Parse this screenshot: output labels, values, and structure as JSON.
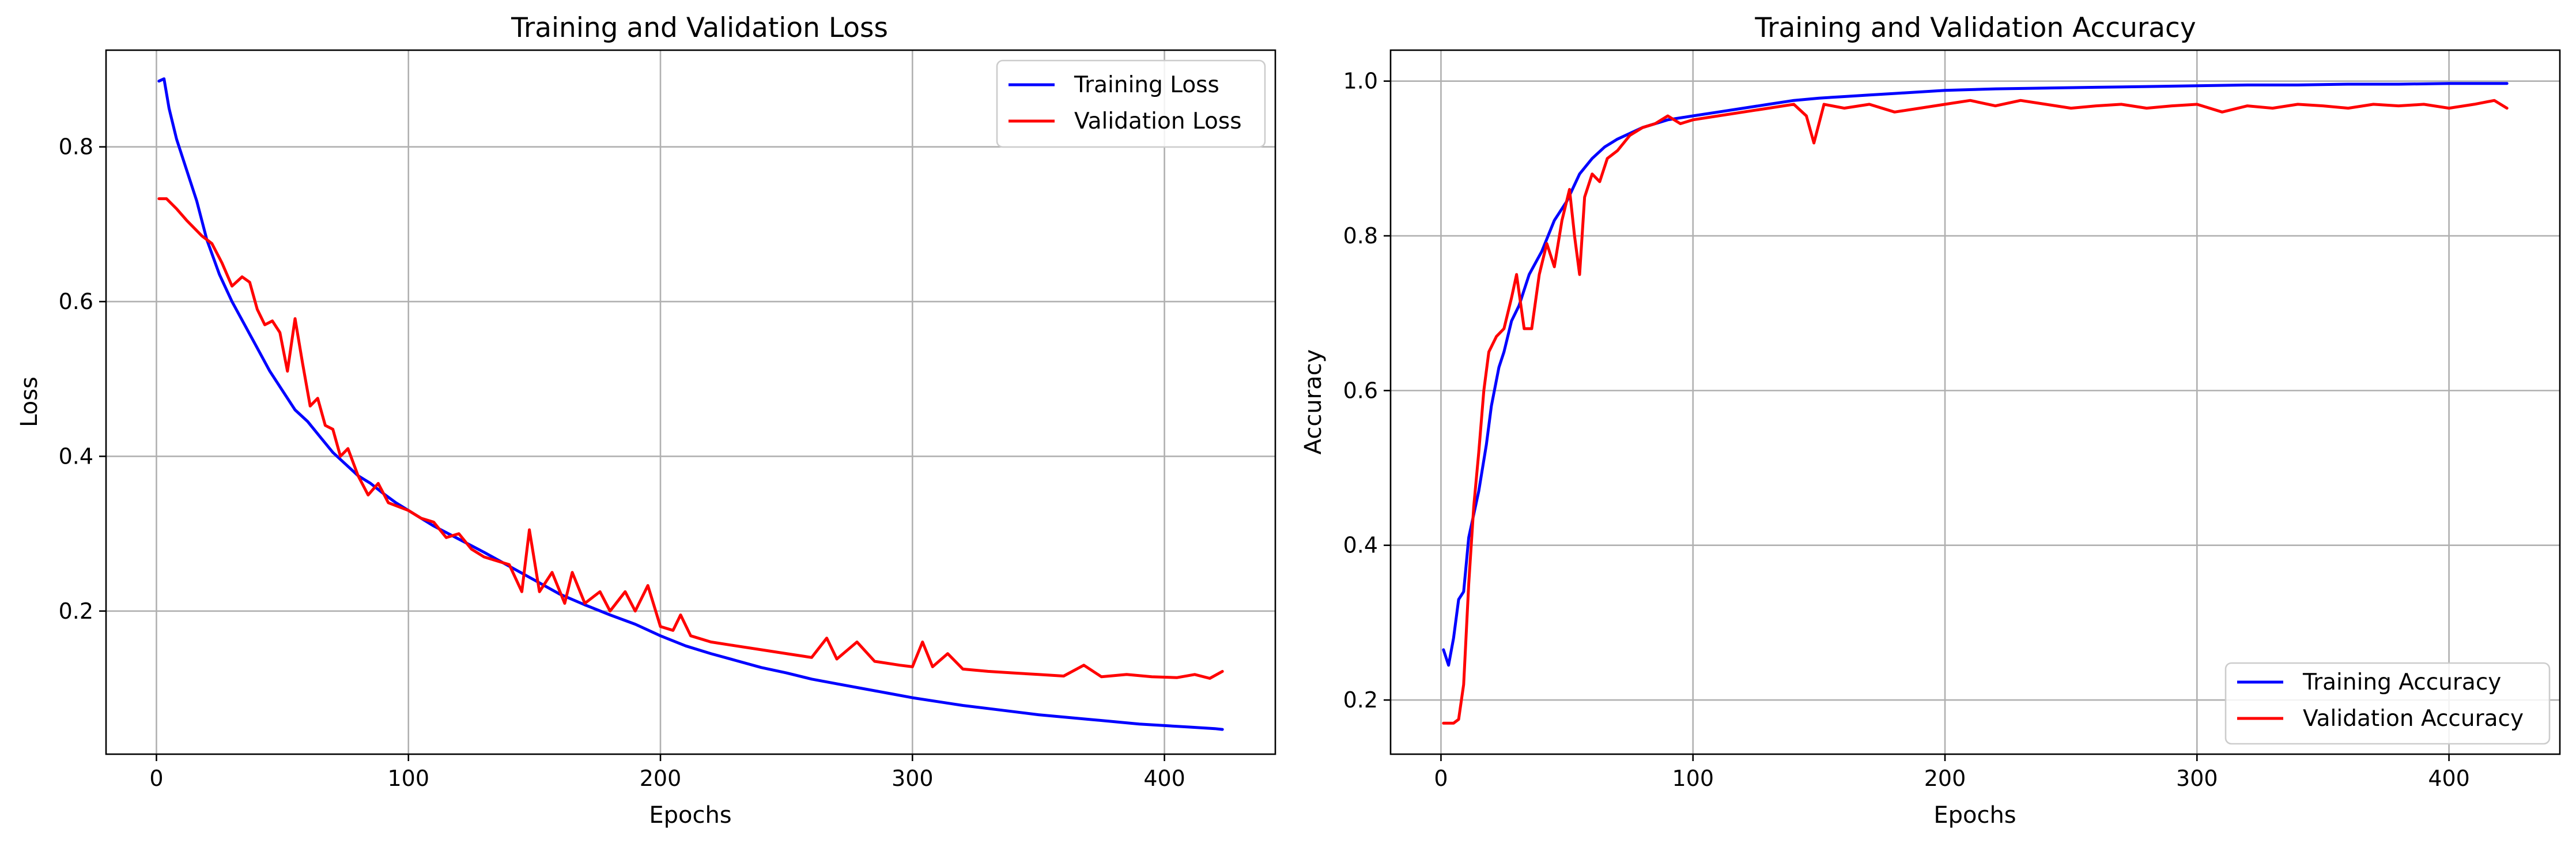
{
  "chart_data": [
    {
      "type": "line",
      "title": "Training and Validation Loss",
      "xlabel": "Epochs",
      "ylabel": "Loss",
      "xlim": [
        -20,
        444
      ],
      "ylim": [
        0.015,
        0.925
      ],
      "xticks": [
        0,
        100,
        200,
        300,
        400
      ],
      "yticks": [
        0.2,
        0.4,
        0.6,
        0.8
      ],
      "xtick_labels": [
        "0",
        "100",
        "200",
        "300",
        "400"
      ],
      "ytick_labels": [
        "0.2",
        "0.4",
        "0.6",
        "0.8"
      ],
      "grid": true,
      "legend": "top-right",
      "series": [
        {
          "name": "Training Loss",
          "color": "#0000ff",
          "points": [
            [
              1,
              0.885
            ],
            [
              3,
              0.888
            ],
            [
              5,
              0.85
            ],
            [
              8,
              0.81
            ],
            [
              12,
              0.77
            ],
            [
              16,
              0.73
            ],
            [
              20,
              0.68
            ],
            [
              25,
              0.635
            ],
            [
              30,
              0.6
            ],
            [
              35,
              0.57
            ],
            [
              40,
              0.54
            ],
            [
              45,
              0.51
            ],
            [
              50,
              0.485
            ],
            [
              55,
              0.46
            ],
            [
              60,
              0.445
            ],
            [
              65,
              0.425
            ],
            [
              70,
              0.405
            ],
            [
              75,
              0.39
            ],
            [
              80,
              0.375
            ],
            [
              85,
              0.365
            ],
            [
              90,
              0.352
            ],
            [
              95,
              0.34
            ],
            [
              100,
              0.33
            ],
            [
              110,
              0.31
            ],
            [
              120,
              0.293
            ],
            [
              130,
              0.276
            ],
            [
              140,
              0.258
            ],
            [
              150,
              0.24
            ],
            [
              160,
              0.222
            ],
            [
              170,
              0.208
            ],
            [
              180,
              0.195
            ],
            [
              190,
              0.183
            ],
            [
              200,
              0.168
            ],
            [
              210,
              0.155
            ],
            [
              220,
              0.145
            ],
            [
              230,
              0.136
            ],
            [
              240,
              0.127
            ],
            [
              250,
              0.12
            ],
            [
              260,
              0.112
            ],
            [
              270,
              0.106
            ],
            [
              280,
              0.1
            ],
            [
              290,
              0.094
            ],
            [
              300,
              0.088
            ],
            [
              310,
              0.083
            ],
            [
              320,
              0.078
            ],
            [
              330,
              0.074
            ],
            [
              340,
              0.07
            ],
            [
              350,
              0.066
            ],
            [
              360,
              0.063
            ],
            [
              370,
              0.06
            ],
            [
              380,
              0.057
            ],
            [
              390,
              0.054
            ],
            [
              400,
              0.052
            ],
            [
              410,
              0.05
            ],
            [
              420,
              0.048
            ],
            [
              423,
              0.047
            ]
          ]
        },
        {
          "name": "Validation Loss",
          "color": "#ff0000",
          "points": [
            [
              1,
              0.733
            ],
            [
              4,
              0.733
            ],
            [
              8,
              0.72
            ],
            [
              12,
              0.705
            ],
            [
              18,
              0.685
            ],
            [
              22,
              0.675
            ],
            [
              26,
              0.65
            ],
            [
              30,
              0.62
            ],
            [
              34,
              0.632
            ],
            [
              37,
              0.625
            ],
            [
              40,
              0.59
            ],
            [
              43,
              0.57
            ],
            [
              46,
              0.575
            ],
            [
              49,
              0.56
            ],
            [
              52,
              0.51
            ],
            [
              55,
              0.578
            ],
            [
              58,
              0.52
            ],
            [
              61,
              0.465
            ],
            [
              64,
              0.475
            ],
            [
              67,
              0.44
            ],
            [
              70,
              0.435
            ],
            [
              73,
              0.4
            ],
            [
              76,
              0.41
            ],
            [
              80,
              0.375
            ],
            [
              84,
              0.35
            ],
            [
              88,
              0.365
            ],
            [
              92,
              0.34
            ],
            [
              100,
              0.33
            ],
            [
              105,
              0.32
            ],
            [
              110,
              0.315
            ],
            [
              115,
              0.295
            ],
            [
              120,
              0.3
            ],
            [
              125,
              0.28
            ],
            [
              130,
              0.27
            ],
            [
              135,
              0.265
            ],
            [
              140,
              0.26
            ],
            [
              145,
              0.225
            ],
            [
              148,
              0.305
            ],
            [
              152,
              0.225
            ],
            [
              157,
              0.25
            ],
            [
              162,
              0.21
            ],
            [
              165,
              0.25
            ],
            [
              170,
              0.21
            ],
            [
              176,
              0.225
            ],
            [
              180,
              0.2
            ],
            [
              186,
              0.225
            ],
            [
              190,
              0.2
            ],
            [
              195,
              0.233
            ],
            [
              200,
              0.18
            ],
            [
              205,
              0.175
            ],
            [
              208,
              0.195
            ],
            [
              212,
              0.168
            ],
            [
              220,
              0.16
            ],
            [
              230,
              0.155
            ],
            [
              240,
              0.15
            ],
            [
              250,
              0.145
            ],
            [
              260,
              0.14
            ],
            [
              266,
              0.165
            ],
            [
              270,
              0.138
            ],
            [
              278,
              0.16
            ],
            [
              285,
              0.135
            ],
            [
              295,
              0.13
            ],
            [
              300,
              0.128
            ],
            [
              304,
              0.16
            ],
            [
              308,
              0.128
            ],
            [
              314,
              0.145
            ],
            [
              320,
              0.125
            ],
            [
              330,
              0.122
            ],
            [
              340,
              0.12
            ],
            [
              350,
              0.118
            ],
            [
              360,
              0.116
            ],
            [
              368,
              0.13
            ],
            [
              375,
              0.115
            ],
            [
              385,
              0.118
            ],
            [
              395,
              0.115
            ],
            [
              405,
              0.114
            ],
            [
              412,
              0.118
            ],
            [
              418,
              0.113
            ],
            [
              423,
              0.122
            ]
          ]
        }
      ]
    },
    {
      "type": "line",
      "title": "Training and Validation Accuracy",
      "xlabel": "Epochs",
      "ylabel": "Accuracy",
      "xlim": [
        -20,
        444
      ],
      "ylim": [
        0.13,
        1.04
      ],
      "xticks": [
        0,
        100,
        200,
        300,
        400
      ],
      "yticks": [
        0.2,
        0.4,
        0.6,
        0.8,
        1.0
      ],
      "xtick_labels": [
        "0",
        "100",
        "200",
        "300",
        "400"
      ],
      "ytick_labels": [
        "0.2",
        "0.4",
        "0.6",
        "0.8",
        "1.0"
      ],
      "grid": true,
      "legend": "bottom-right",
      "series": [
        {
          "name": "Training Accuracy",
          "color": "#0000ff",
          "points": [
            [
              1,
              0.265
            ],
            [
              3,
              0.245
            ],
            [
              5,
              0.28
            ],
            [
              7,
              0.33
            ],
            [
              9,
              0.34
            ],
            [
              11,
              0.41
            ],
            [
              13,
              0.44
            ],
            [
              15,
              0.47
            ],
            [
              18,
              0.53
            ],
            [
              20,
              0.58
            ],
            [
              23,
              0.63
            ],
            [
              25,
              0.65
            ],
            [
              28,
              0.69
            ],
            [
              31,
              0.71
            ],
            [
              35,
              0.75
            ],
            [
              40,
              0.78
            ],
            [
              45,
              0.82
            ],
            [
              50,
              0.845
            ],
            [
              55,
              0.88
            ],
            [
              60,
              0.9
            ],
            [
              65,
              0.915
            ],
            [
              70,
              0.925
            ],
            [
              80,
              0.94
            ],
            [
              90,
              0.95
            ],
            [
              100,
              0.955
            ],
            [
              110,
              0.96
            ],
            [
              120,
              0.965
            ],
            [
              130,
              0.97
            ],
            [
              140,
              0.975
            ],
            [
              150,
              0.978
            ],
            [
              160,
              0.98
            ],
            [
              170,
              0.982
            ],
            [
              180,
              0.984
            ],
            [
              200,
              0.988
            ],
            [
              220,
              0.99
            ],
            [
              240,
              0.991
            ],
            [
              260,
              0.992
            ],
            [
              280,
              0.993
            ],
            [
              300,
              0.994
            ],
            [
              320,
              0.995
            ],
            [
              340,
              0.995
            ],
            [
              360,
              0.996
            ],
            [
              380,
              0.996
            ],
            [
              400,
              0.997
            ],
            [
              423,
              0.997
            ]
          ]
        },
        {
          "name": "Validation Accuracy",
          "color": "#ff0000",
          "points": [
            [
              1,
              0.17
            ],
            [
              5,
              0.17
            ],
            [
              7,
              0.175
            ],
            [
              9,
              0.22
            ],
            [
              11,
              0.35
            ],
            [
              13,
              0.45
            ],
            [
              15,
              0.52
            ],
            [
              17,
              0.6
            ],
            [
              19,
              0.65
            ],
            [
              22,
              0.67
            ],
            [
              25,
              0.68
            ],
            [
              28,
              0.72
            ],
            [
              30,
              0.75
            ],
            [
              33,
              0.68
            ],
            [
              36,
              0.68
            ],
            [
              39,
              0.75
            ],
            [
              42,
              0.79
            ],
            [
              45,
              0.76
            ],
            [
              48,
              0.82
            ],
            [
              51,
              0.86
            ],
            [
              53,
              0.8
            ],
            [
              55,
              0.75
            ],
            [
              57,
              0.85
            ],
            [
              60,
              0.88
            ],
            [
              63,
              0.87
            ],
            [
              66,
              0.9
            ],
            [
              70,
              0.91
            ],
            [
              75,
              0.93
            ],
            [
              80,
              0.94
            ],
            [
              85,
              0.945
            ],
            [
              90,
              0.955
            ],
            [
              95,
              0.945
            ],
            [
              100,
              0.95
            ],
            [
              110,
              0.955
            ],
            [
              120,
              0.96
            ],
            [
              130,
              0.965
            ],
            [
              140,
              0.97
            ],
            [
              145,
              0.955
            ],
            [
              148,
              0.92
            ],
            [
              152,
              0.97
            ],
            [
              160,
              0.965
            ],
            [
              170,
              0.97
            ],
            [
              180,
              0.96
            ],
            [
              190,
              0.965
            ],
            [
              200,
              0.97
            ],
            [
              210,
              0.975
            ],
            [
              220,
              0.968
            ],
            [
              230,
              0.975
            ],
            [
              240,
              0.97
            ],
            [
              250,
              0.965
            ],
            [
              260,
              0.968
            ],
            [
              270,
              0.97
            ],
            [
              280,
              0.965
            ],
            [
              290,
              0.968
            ],
            [
              300,
              0.97
            ],
            [
              310,
              0.96
            ],
            [
              320,
              0.968
            ],
            [
              330,
              0.965
            ],
            [
              340,
              0.97
            ],
            [
              350,
              0.968
            ],
            [
              360,
              0.965
            ],
            [
              370,
              0.97
            ],
            [
              380,
              0.968
            ],
            [
              390,
              0.97
            ],
            [
              400,
              0.965
            ],
            [
              410,
              0.97
            ],
            [
              418,
              0.975
            ],
            [
              423,
              0.965
            ]
          ]
        }
      ]
    }
  ]
}
